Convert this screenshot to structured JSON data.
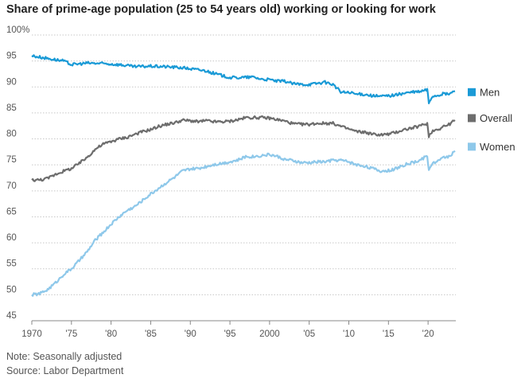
{
  "header": {
    "title": "Share of prime-age population (25 to 54 years old) working or looking for work"
  },
  "footer": {
    "note": "Note: Seasonally adjusted",
    "source": "Source: Labor Department"
  },
  "chart_data": {
    "type": "line",
    "title": "Share of prime-age population (25 to 54 years old) working or looking for work",
    "xlabel": "",
    "ylabel": "",
    "xlim": [
      1970,
      2023.5
    ],
    "ylim": [
      45,
      100
    ],
    "x_ticks": [
      1970,
      1975,
      1980,
      1985,
      1990,
      1995,
      2000,
      2005,
      2010,
      2015,
      2020
    ],
    "x_tick_labels": [
      "1970",
      "'75",
      "'80",
      "'85",
      "'90",
      "'95",
      "2000",
      "'05",
      "'10",
      "'15",
      "'20"
    ],
    "y_ticks": [
      45,
      50,
      55,
      60,
      65,
      70,
      75,
      80,
      85,
      90,
      95,
      100
    ],
    "y_tick_labels": [
      "45",
      "50",
      "55",
      "60",
      "65",
      "70",
      "75",
      "80",
      "85",
      "90",
      "95",
      "100%"
    ],
    "grid": true,
    "legend_position": "right",
    "series": [
      {
        "name": "Men",
        "color": "#1a9ad6",
        "points": [
          [
            1970,
            96.0
          ],
          [
            1972,
            95.5
          ],
          [
            1974,
            95.0
          ],
          [
            1975,
            94.3
          ],
          [
            1977,
            94.6
          ],
          [
            1979,
            94.5
          ],
          [
            1981,
            94.3
          ],
          [
            1983,
            93.9
          ],
          [
            1985,
            94.0
          ],
          [
            1987,
            93.9
          ],
          [
            1989,
            93.7
          ],
          [
            1990,
            93.5
          ],
          [
            1992,
            93.1
          ],
          [
            1993,
            92.6
          ],
          [
            1995,
            91.8
          ],
          [
            1996,
            91.8
          ],
          [
            1998,
            91.9
          ],
          [
            1999,
            91.5
          ],
          [
            2000,
            91.4
          ],
          [
            2001,
            91.1
          ],
          [
            2002,
            91.1
          ],
          [
            2003,
            90.6
          ],
          [
            2004,
            90.5
          ],
          [
            2005,
            90.5
          ],
          [
            2006,
            90.7
          ],
          [
            2007,
            90.9
          ],
          [
            2008,
            90.5
          ],
          [
            2009,
            89.0
          ],
          [
            2010,
            88.9
          ],
          [
            2011,
            88.6
          ],
          [
            2012,
            88.6
          ],
          [
            2013,
            88.3
          ],
          [
            2014,
            88.2
          ],
          [
            2015,
            88.3
          ],
          [
            2016,
            88.5
          ],
          [
            2017,
            88.8
          ],
          [
            2018,
            89.0
          ],
          [
            2019,
            89.1
          ],
          [
            2019.9,
            89.5
          ],
          [
            2020.1,
            86.9
          ],
          [
            2020.3,
            87.6
          ],
          [
            2020.6,
            88.3
          ],
          [
            2021,
            88.3
          ],
          [
            2021.5,
            88.5
          ],
          [
            2022,
            88.7
          ],
          [
            2022.5,
            88.6
          ],
          [
            2023,
            88.9
          ],
          [
            2023.4,
            89.2
          ]
        ]
      },
      {
        "name": "Overall",
        "color": "#6d6d6d",
        "points": [
          [
            1970,
            72.1
          ],
          [
            1971,
            72.1
          ],
          [
            1972,
            72.4
          ],
          [
            1973,
            73.2
          ],
          [
            1974,
            73.8
          ],
          [
            1975,
            74.3
          ],
          [
            1976,
            75.3
          ],
          [
            1977,
            76.5
          ],
          [
            1978,
            78.0
          ],
          [
            1979,
            79.0
          ],
          [
            1980,
            79.5
          ],
          [
            1981,
            80.0
          ],
          [
            1982,
            80.3
          ],
          [
            1983,
            80.9
          ],
          [
            1984,
            81.4
          ],
          [
            1985,
            81.8
          ],
          [
            1986,
            82.4
          ],
          [
            1987,
            82.8
          ],
          [
            1988,
            83.1
          ],
          [
            1989,
            83.6
          ],
          [
            1990,
            83.5
          ],
          [
            1991,
            83.3
          ],
          [
            1992,
            83.5
          ],
          [
            1993,
            83.3
          ],
          [
            1994,
            83.3
          ],
          [
            1995,
            83.4
          ],
          [
            1996,
            83.7
          ],
          [
            1997,
            84.1
          ],
          [
            1998,
            84.1
          ],
          [
            1999,
            84.1
          ],
          [
            2000,
            84.0
          ],
          [
            2001,
            83.7
          ],
          [
            2002,
            83.4
          ],
          [
            2003,
            82.9
          ],
          [
            2004,
            82.8
          ],
          [
            2005,
            82.8
          ],
          [
            2006,
            83.0
          ],
          [
            2007,
            83.0
          ],
          [
            2008,
            83.0
          ],
          [
            2009,
            82.4
          ],
          [
            2010,
            81.9
          ],
          [
            2011,
            81.4
          ],
          [
            2012,
            81.3
          ],
          [
            2013,
            80.9
          ],
          [
            2014,
            80.8
          ],
          [
            2015,
            80.9
          ],
          [
            2016,
            81.3
          ],
          [
            2017,
            81.8
          ],
          [
            2018,
            82.1
          ],
          [
            2019,
            82.5
          ],
          [
            2019.9,
            83.0
          ],
          [
            2020.1,
            80.4
          ],
          [
            2020.3,
            81.2
          ],
          [
            2020.6,
            81.5
          ],
          [
            2021,
            81.8
          ],
          [
            2021.5,
            82.0
          ],
          [
            2022,
            82.5
          ],
          [
            2022.5,
            82.6
          ],
          [
            2023,
            83.2
          ],
          [
            2023.4,
            83.6
          ]
        ]
      },
      {
        "name": "Women",
        "color": "#8ec8ea",
        "points": [
          [
            1970,
            50.0
          ],
          [
            1971,
            50.2
          ],
          [
            1972,
            51.0
          ],
          [
            1973,
            52.3
          ],
          [
            1974,
            53.9
          ],
          [
            1975,
            55.0
          ],
          [
            1976,
            56.6
          ],
          [
            1977,
            58.3
          ],
          [
            1978,
            60.5
          ],
          [
            1979,
            62.0
          ],
          [
            1980,
            63.6
          ],
          [
            1981,
            65.0
          ],
          [
            1982,
            66.2
          ],
          [
            1983,
            67.0
          ],
          [
            1984,
            68.2
          ],
          [
            1985,
            69.4
          ],
          [
            1986,
            70.5
          ],
          [
            1987,
            71.6
          ],
          [
            1988,
            72.6
          ],
          [
            1989,
            73.8
          ],
          [
            1990,
            74.2
          ],
          [
            1991,
            74.3
          ],
          [
            1992,
            74.7
          ],
          [
            1993,
            75.1
          ],
          [
            1994,
            75.3
          ],
          [
            1995,
            75.6
          ],
          [
            1996,
            75.9
          ],
          [
            1997,
            76.6
          ],
          [
            1998,
            76.6
          ],
          [
            1999,
            76.8
          ],
          [
            2000,
            77.0
          ],
          [
            2001,
            76.6
          ],
          [
            2002,
            76.0
          ],
          [
            2003,
            75.8
          ],
          [
            2004,
            75.4
          ],
          [
            2005,
            75.4
          ],
          [
            2006,
            75.6
          ],
          [
            2007,
            75.6
          ],
          [
            2008,
            75.9
          ],
          [
            2009,
            75.9
          ],
          [
            2010,
            75.6
          ],
          [
            2011,
            75.0
          ],
          [
            2012,
            74.8
          ],
          [
            2013,
            74.3
          ],
          [
            2014,
            73.8
          ],
          [
            2015,
            73.9
          ],
          [
            2016,
            74.3
          ],
          [
            2017,
            75.0
          ],
          [
            2018,
            75.4
          ],
          [
            2019,
            75.9
          ],
          [
            2019.9,
            76.8
          ],
          [
            2020.1,
            73.8
          ],
          [
            2020.3,
            74.8
          ],
          [
            2020.6,
            75.4
          ],
          [
            2021,
            75.6
          ],
          [
            2021.5,
            75.9
          ],
          [
            2022,
            76.5
          ],
          [
            2022.5,
            76.6
          ],
          [
            2023,
            77.1
          ],
          [
            2023.4,
            77.7
          ]
        ]
      }
    ]
  }
}
